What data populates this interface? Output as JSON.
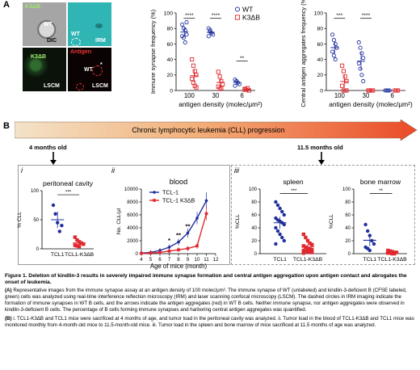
{
  "panel_a": {
    "letter": "A",
    "images": {
      "dic": {
        "top_label": "K3ΔB",
        "wt_label": "WT",
        "corner_label": "DIC"
      },
      "irm": {
        "wt_label": "WT",
        "corner_label": "IRM"
      },
      "lsm_green": {
        "top_label": "K3ΔB",
        "corner_label": "LSCM"
      },
      "lsm_antigen": {
        "top_label": "Antigen",
        "wt_label": "WT",
        "star": "*",
        "corner_label": "LSCM"
      }
    }
  },
  "panel_b": {
    "letter": "B",
    "progression_label": "Chronic lymphocytic leukemia (CLL) progression",
    "stage_left": "4 months old",
    "stage_right": "11.5 months old",
    "sub_i": "i",
    "sub_ii": "ii",
    "sub_iii": "iii"
  },
  "caption": {
    "title": "Figure 1. Deletion of kindlin-3 results in severely impaired immune synapse formation and central antigen aggregation upon antigen contact and abrogates the onset of leukemia.",
    "para_a_label": "(A)",
    "para_a": " Representative images from the immune synapse assay at an antigen density of 100 molec/μm². The immune synapse of WT (unlabeled) and kindlin-3-deficient B (CFSE labeled, green) cells was analyzed using real-time interference reflection microscopy (IRM) and laser scanning confocal microscopy (LSCM). The dashed circles in IRM imaging indicate the formation of immune synapses in WT B cells, and the arrows indicate the antigen aggregates (red) in WT B cells. Neither immune synapse, nor antigen aggregates were observed in kindlin-3-deficient B cells. The percentage of B cells forming immune synapses and harboring central antigen aggregates was quantified.",
    "para_b_label": "(B)",
    "para_b": " i. TCL1-K3ΔB and TCL1 mice were sacrificed at 4 months of age, and tumor load in the peritoneal cavity was analyzed. ii. Tumor load in the blood of TCL1-K3ΔB and TCL1 mice was monitored monthly from 4-month-old mice to 11.5-month-old mice. iii. Tumor load in the spleen and bone marrow of mice sacrificed at 11.5 months of age was analyzed."
  },
  "chart_data": [
    {
      "id": "immune_synapse",
      "type": "scatter",
      "ylabel": "Immune synapse frequency (%)",
      "xlabel": "antigen density (molec/μm²)",
      "categories": [
        "100",
        "30",
        "6"
      ],
      "ylim": [
        0,
        100
      ],
      "yticks": [
        "0",
        "20",
        "40",
        "60",
        "80",
        "100"
      ],
      "legend": [
        "WT",
        "K3ΔB"
      ],
      "colors": {
        "WT": "#1f2f9c",
        "K3ΔB": "#e0282e"
      },
      "significance": [
        "****",
        "****",
        "**"
      ],
      "series": [
        {
          "name": "WT",
          "values": [
            [
              85,
              80,
              78,
              72,
              70,
              68,
              62,
              88
            ],
            [
              80,
              78,
              74,
              72,
              70,
              76
            ],
            [
              14,
              12,
              10,
              8,
              6,
              12
            ]
          ]
        },
        {
          "name": "K3ΔB",
          "values": [
            [
              40,
              32,
              25,
              20,
              15,
              10,
              6,
              4
            ],
            [
              24,
              18,
              12,
              8,
              5,
              2,
              3
            ],
            [
              2,
              1,
              3,
              0,
              1
            ]
          ]
        }
      ]
    },
    {
      "id": "central_antigen",
      "type": "scatter",
      "ylabel": "Central antigen aggregates frequency (%)",
      "xlabel": "antigen density (molec/μm²)",
      "categories": [
        "100",
        "30",
        "6"
      ],
      "ylim": [
        0,
        100
      ],
      "yticks": [
        "0",
        "20",
        "40",
        "60",
        "80",
        "100"
      ],
      "colors": {
        "WT": "#1f2f9c",
        "K3ΔB": "#e0282e"
      },
      "significance": [
        "***",
        "****"
      ],
      "series": [
        {
          "name": "WT",
          "values": [
            [
              72,
              65,
              60,
              55,
              50,
              45,
              40
            ],
            [
              62,
              55,
              48,
              42,
              35,
              28,
              20,
              12
            ],
            [
              0,
              0,
              0,
              0
            ]
          ]
        },
        {
          "name": "K3ΔB",
          "values": [
            [
              32,
              25,
              18,
              12,
              6,
              0,
              0,
              0
            ],
            [
              0,
              0,
              0,
              0,
              0
            ],
            [
              0,
              0,
              0
            ]
          ]
        }
      ]
    },
    {
      "id": "peritoneal",
      "type": "scatter",
      "title": "peritoneal cavity",
      "ylabel": "% CLL",
      "categories": [
        "TCL1",
        "TCL1-K3ΔB"
      ],
      "ylim": [
        0,
        100
      ],
      "yticks": [
        "0",
        "50",
        "100"
      ],
      "significance": [
        "***"
      ],
      "series": [
        {
          "name": "TCL1",
          "values": [
            75,
            60,
            45,
            30,
            40
          ]
        },
        {
          "name": "TCL1-K3ΔB",
          "values": [
            20,
            15,
            12,
            10,
            8,
            6,
            5,
            4
          ]
        }
      ]
    },
    {
      "id": "blood",
      "type": "line",
      "title": "blood",
      "ylabel": "No. CLL/μl",
      "xlabel": "Age of mice (month)",
      "x": [
        4,
        5,
        6,
        7,
        8,
        9,
        10,
        11
      ],
      "xticks": [
        "4",
        "5",
        "6",
        "7",
        "8",
        "9",
        "10",
        "11",
        "12"
      ],
      "ylim": [
        0,
        10000
      ],
      "yticks": [
        "0",
        "2000",
        "4000",
        "6000",
        "8000",
        "10000"
      ],
      "annotations": [
        "*",
        "**",
        "**"
      ],
      "series": [
        {
          "name": "TCL-1",
          "values": [
            100,
            200,
            500,
            1000,
            1800,
            3200,
            5500,
            8200
          ]
        },
        {
          "name": "TCL-1 K3ΔB",
          "values": [
            50,
            100,
            200,
            400,
            600,
            800,
            1200,
            6200
          ]
        }
      ]
    },
    {
      "id": "spleen",
      "type": "scatter",
      "title": "spleen",
      "ylabel": "%CLL",
      "categories": [
        "TCL1",
        "TCL1-K3ΔB"
      ],
      "ylim": [
        0,
        100
      ],
      "yticks": [
        "0",
        "20",
        "40",
        "60",
        "80",
        "100"
      ],
      "significance": [
        "***"
      ],
      "series": [
        {
          "name": "TCL1",
          "values": [
            80,
            75,
            70,
            65,
            60,
            55,
            52,
            50,
            48,
            45,
            40,
            35,
            30,
            25,
            20,
            15
          ]
        },
        {
          "name": "TCL1-K3ΔB",
          "values": [
            30,
            25,
            20,
            16,
            14,
            12,
            10,
            8,
            7,
            6,
            5,
            4,
            3,
            2,
            2,
            1
          ]
        }
      ]
    },
    {
      "id": "bone_marrow",
      "type": "scatter",
      "title": "bone marrow",
      "ylabel": "%CLL",
      "categories": [
        "TCL1",
        "TCL1-K3ΔB"
      ],
      "ylim": [
        0,
        100
      ],
      "yticks": [
        "0",
        "20",
        "40",
        "60",
        "80",
        "100"
      ],
      "significance": [
        "**"
      ],
      "series": [
        {
          "name": "TCL1",
          "values": [
            45,
            35,
            28,
            20,
            15,
            10,
            8,
            5
          ]
        },
        {
          "name": "TCL1-K3ΔB",
          "values": [
            5,
            4,
            3,
            2,
            2,
            1,
            1,
            0,
            0
          ]
        }
      ]
    }
  ]
}
